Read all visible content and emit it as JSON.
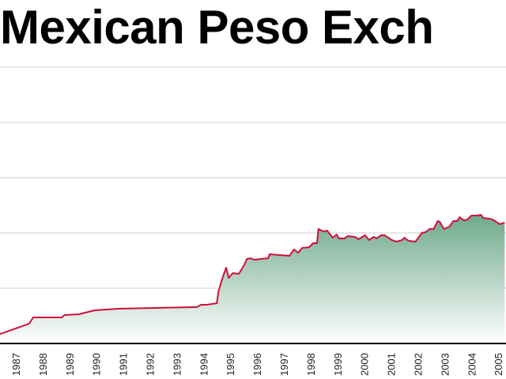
{
  "chart_data": {
    "type": "area",
    "title": "Mexican Peso Exch",
    "xlabel": "",
    "ylabel": "",
    "ylim": [
      0,
      25
    ],
    "y_grid_step": 5,
    "grid": true,
    "x_ticks": [
      1987,
      1988,
      1989,
      1990,
      1991,
      1992,
      1993,
      1994,
      1995,
      1996,
      1997,
      1998,
      1999,
      2000,
      2001,
      2002,
      2003,
      2004,
      2005
    ],
    "colors": {
      "line": "#d0103a",
      "fill_top": "#6fa98c",
      "fill_bottom": "#ffffff",
      "grid": "#cccccc",
      "axis": "#000000"
    },
    "series": [
      {
        "points": [
          [
            1986.41,
            0.86
          ],
          [
            1987.5,
            1.79
          ],
          [
            1987.65,
            2.36
          ],
          [
            1988.71,
            2.36
          ],
          [
            1988.82,
            2.57
          ],
          [
            1989.35,
            2.64
          ],
          [
            1989.94,
            3.0
          ],
          [
            1990.82,
            3.14
          ],
          [
            1992.0,
            3.21
          ],
          [
            1993.76,
            3.29
          ],
          [
            1993.91,
            3.5
          ],
          [
            1994.12,
            3.5
          ],
          [
            1994.5,
            3.64
          ],
          [
            1994.56,
            4.71
          ],
          [
            1994.74,
            6.14
          ],
          [
            1994.85,
            6.86
          ],
          [
            1994.94,
            5.93
          ],
          [
            1995.09,
            6.36
          ],
          [
            1995.32,
            6.29
          ],
          [
            1995.53,
            7.14
          ],
          [
            1995.62,
            7.64
          ],
          [
            1995.76,
            7.71
          ],
          [
            1995.91,
            7.57
          ],
          [
            1996.12,
            7.64
          ],
          [
            1996.41,
            7.71
          ],
          [
            1996.47,
            8.07
          ],
          [
            1996.85,
            8.0
          ],
          [
            1997.21,
            7.93
          ],
          [
            1997.38,
            8.5
          ],
          [
            1997.53,
            8.21
          ],
          [
            1997.68,
            8.64
          ],
          [
            1997.94,
            8.71
          ],
          [
            1998.09,
            9.07
          ],
          [
            1998.24,
            9.07
          ],
          [
            1998.29,
            10.36
          ],
          [
            1998.47,
            10.14
          ],
          [
            1998.62,
            10.21
          ],
          [
            1998.82,
            9.57
          ],
          [
            1998.97,
            9.86
          ],
          [
            1999.06,
            9.5
          ],
          [
            1999.26,
            9.5
          ],
          [
            1999.38,
            9.71
          ],
          [
            1999.65,
            9.64
          ],
          [
            1999.79,
            9.43
          ],
          [
            2000.03,
            9.79
          ],
          [
            2000.18,
            9.36
          ],
          [
            2000.35,
            9.64
          ],
          [
            2000.47,
            9.5
          ],
          [
            2000.62,
            9.79
          ],
          [
            2000.76,
            9.79
          ],
          [
            2001.03,
            9.36
          ],
          [
            2001.21,
            9.21
          ],
          [
            2001.41,
            9.36
          ],
          [
            2001.5,
            9.57
          ],
          [
            2001.65,
            9.29
          ],
          [
            2001.91,
            9.21
          ],
          [
            2002.0,
            9.5
          ],
          [
            2002.15,
            10.0
          ],
          [
            2002.29,
            10.07
          ],
          [
            2002.44,
            10.36
          ],
          [
            2002.59,
            10.36
          ],
          [
            2002.74,
            11.07
          ],
          [
            2002.82,
            11.0
          ],
          [
            2002.97,
            10.36
          ],
          [
            2003.18,
            10.57
          ],
          [
            2003.32,
            11.07
          ],
          [
            2003.47,
            11.07
          ],
          [
            2003.56,
            11.43
          ],
          [
            2003.71,
            11.14
          ],
          [
            2003.85,
            11.21
          ],
          [
            2004.0,
            11.57
          ],
          [
            2004.21,
            11.57
          ],
          [
            2004.35,
            11.64
          ],
          [
            2004.44,
            11.36
          ],
          [
            2004.65,
            11.29
          ],
          [
            2004.79,
            11.21
          ],
          [
            2005.06,
            10.79
          ],
          [
            2005.24,
            10.93
          ]
        ]
      }
    ]
  }
}
